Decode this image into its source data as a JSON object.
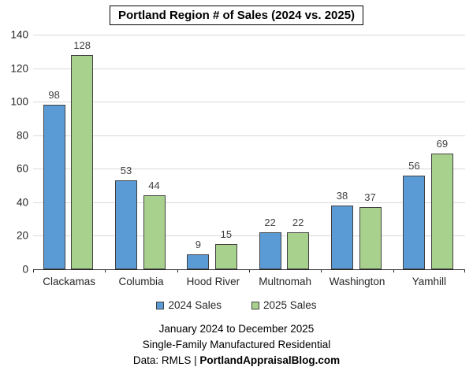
{
  "title": "Portland Region # of Sales (2024 vs. 2025)",
  "chart_data": {
    "type": "bar",
    "title": "Portland Region # of Sales (2024 vs. 2025)",
    "categories": [
      "Clackamas",
      "Columbia",
      "Hood River",
      "Multnomah",
      "Washington",
      "Yamhill"
    ],
    "series": [
      {
        "name": "2024 Sales",
        "color": "#5B9BD5",
        "values": [
          98,
          53,
          9,
          22,
          38,
          56
        ]
      },
      {
        "name": "2025 Sales",
        "color": "#A9D18E",
        "values": [
          128,
          44,
          15,
          22,
          37,
          69
        ]
      }
    ],
    "xlabel": "",
    "ylabel": "",
    "ylim": [
      0,
      140
    ],
    "yticks": [
      0,
      20,
      40,
      60,
      80,
      100,
      120,
      140
    ],
    "grid": true,
    "legend_position": "bottom",
    "data_labels": true
  },
  "legend": {
    "items": [
      {
        "label": "2024 Sales",
        "color": "#5B9BD5"
      },
      {
        "label": "2025 Sales",
        "color": "#A9D18E"
      }
    ]
  },
  "footer": {
    "line1": "January 2024 to December 2025",
    "line2": "Single-Family Manufactured Residential",
    "line3_prefix": "Data: RMLS | ",
    "line3_bold": "PortlandAppraisalBlog.com"
  },
  "colors": {
    "bar_2024": "#5B9BD5",
    "bar_2025": "#A9D18E",
    "bar_border": "#404040",
    "gridline": "#D9D9D9",
    "axis": "#262626",
    "value_label": "#404040",
    "text": "#262626"
  }
}
